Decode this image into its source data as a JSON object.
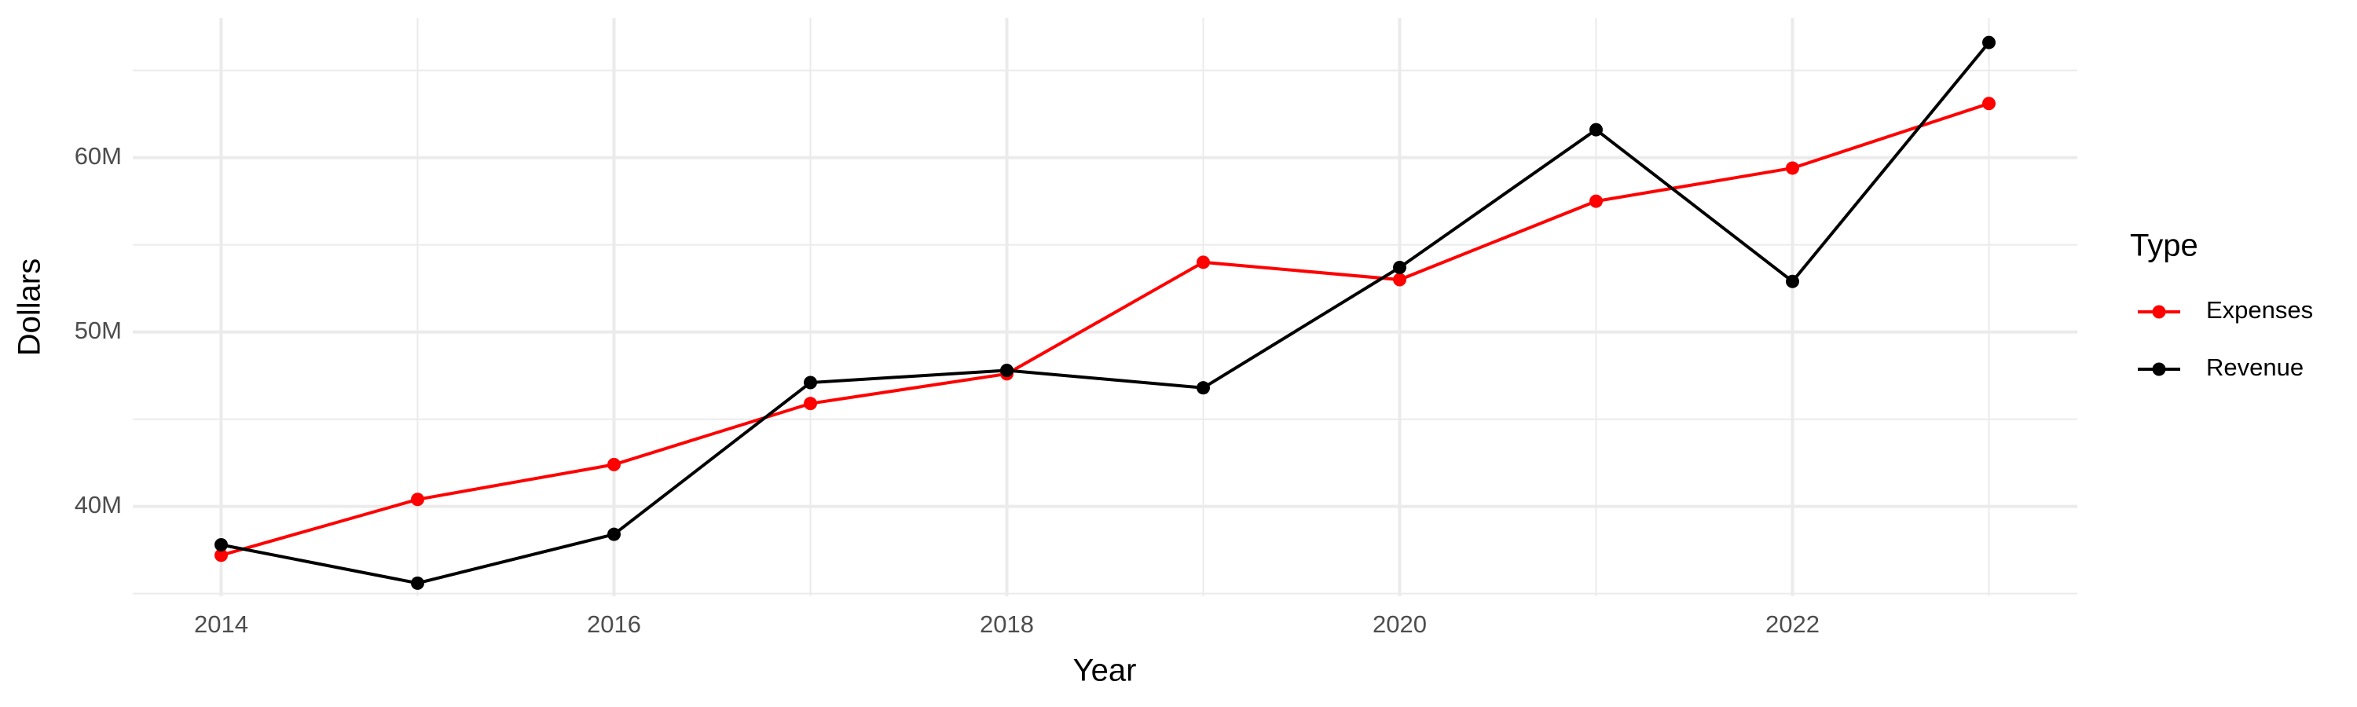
{
  "chart_data": {
    "type": "line",
    "x_label": "Year",
    "y_label": "Dollars",
    "legend_title": "Type",
    "legend_position": "right",
    "x": [
      2014,
      2015,
      2016,
      2017,
      2018,
      2019,
      2020,
      2021,
      2022,
      2023
    ],
    "series": [
      {
        "name": "Expenses",
        "color": "#ff0000",
        "values": [
          37200000,
          40400000,
          42400000,
          45900000,
          47600000,
          54000000,
          53000000,
          57500000,
          59400000,
          63100000
        ]
      },
      {
        "name": "Revenue",
        "color": "#000000",
        "values": [
          37800000,
          35600000,
          38400000,
          47100000,
          47800000,
          46800000,
          53700000,
          61600000,
          52900000,
          66600000
        ]
      }
    ],
    "xlim": [
      2013.55,
      2023.45
    ],
    "xticks": [
      2014,
      2016,
      2018,
      2020,
      2022
    ],
    "minor_xticks": [
      2015,
      2017,
      2019,
      2021,
      2023
    ],
    "ylim": [
      34850000,
      68000000
    ],
    "yticks": [
      {
        "value": 40000000,
        "label": "40M"
      },
      {
        "value": 50000000,
        "label": "50M"
      },
      {
        "value": 60000000,
        "label": "60M"
      }
    ],
    "minor_yticks": [
      35000000,
      45000000,
      55000000,
      65000000
    ],
    "grid": true
  }
}
